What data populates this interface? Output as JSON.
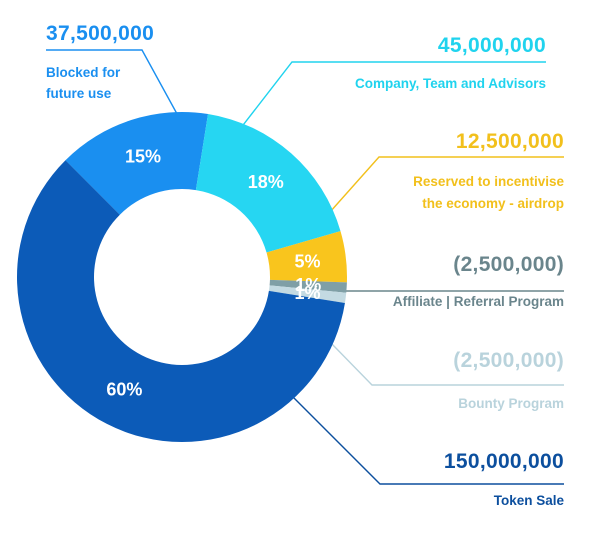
{
  "chart_data": {
    "type": "pie",
    "title": "",
    "donut": true,
    "slices": [
      {
        "label": "Blocked for future use",
        "label_lines": [
          "Blocked for",
          "future use"
        ],
        "amount": "37,500,000",
        "value": 15,
        "percent_label": "15%",
        "color": "#1a8ff0"
      },
      {
        "label": "Company, Team and Advisors",
        "label_lines": [
          "Company, Team and Advisors"
        ],
        "amount": "45,000,000",
        "value": 18,
        "percent_label": "18%",
        "color": "#26d6f2"
      },
      {
        "label": "Reserved to incentivise the economy - airdrop",
        "label_lines": [
          "Reserved to incentivise",
          "the economy - airdrop"
        ],
        "amount": "12,500,000",
        "value": 5,
        "percent_label": "5%",
        "color": "#f9c51d"
      },
      {
        "label": "Affiliate | Referral Program",
        "label_lines": [
          "Affiliate | Referral Program"
        ],
        "amount": "(2,500,000)",
        "value": 1,
        "percent_label": "1%",
        "color": "#7f9fa6"
      },
      {
        "label": "Bounty Program",
        "label_lines": [
          "Bounty Program"
        ],
        "amount": "(2,500,000)",
        "value": 1,
        "percent_label": "1%",
        "color": "#c3dae2"
      },
      {
        "label": "Token Sale",
        "label_lines": [
          "Token Sale"
        ],
        "amount": "150,000,000",
        "value": 60,
        "percent_label": "60%",
        "color": "#0c5bb8"
      }
    ],
    "label_colors": {
      "Blocked for future use": "#1a8ff0",
      "Company, Team and Advisors": "#20d3ee",
      "Reserved to incentivise the economy - airdrop": "#f2c01c",
      "Affiliate | Referral Program": "#6a858c",
      "Bounty Program": "#b9d3dc",
      "Token Sale": "#0c4f9e"
    }
  }
}
